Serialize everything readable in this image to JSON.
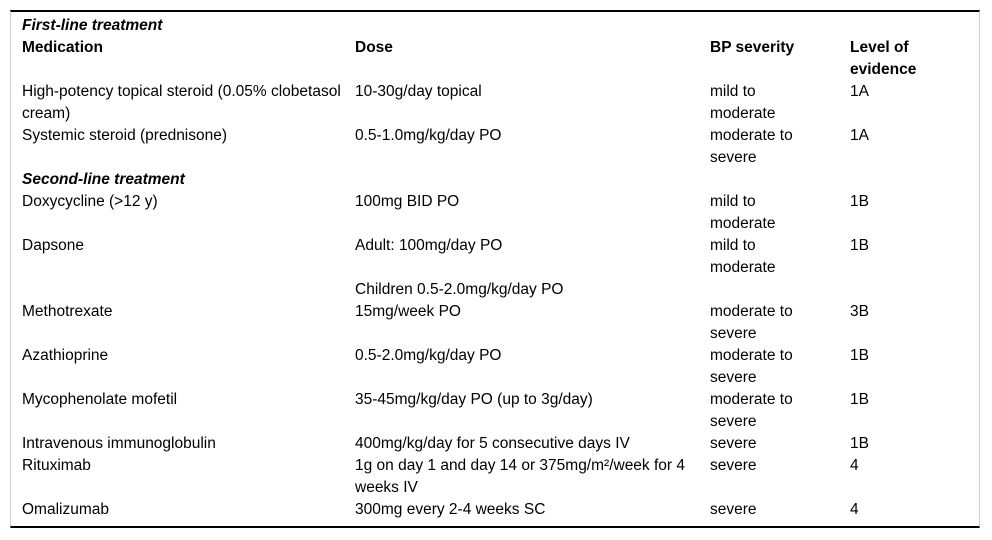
{
  "colors": {
    "text": "#000000",
    "rule": "#000000",
    "frame": "#cccccc",
    "background": "#ffffff"
  },
  "table": {
    "columns": [
      "Medication",
      "Dose",
      "BP severity",
      "Level of evidence"
    ],
    "sections": [
      {
        "title": "First-line treatment",
        "rows": [
          {
            "medication": "High-potency topical steroid (0.05% clobetasol cream)",
            "dose": "10-30g/day topical",
            "severity": "mild to moderate",
            "evidence": "1A"
          },
          {
            "medication": "Systemic steroid (prednisone)",
            "dose": "0.5-1.0mg/kg/day PO",
            "severity": "moderate to severe",
            "evidence": "1A"
          }
        ]
      },
      {
        "title": "Second-line treatment",
        "rows": [
          {
            "medication": "Doxycycline (>12 y)",
            "dose": "100mg BID PO",
            "severity": "mild to moderate",
            "evidence": "1B"
          },
          {
            "medication": "Dapsone",
            "dose": "Adult: 100mg/day PO",
            "severity": "mild to moderate",
            "evidence": "1B"
          },
          {
            "medication": "",
            "dose": "Children 0.5-2.0mg/kg/day PO",
            "severity": "",
            "evidence": ""
          },
          {
            "medication": "Methotrexate",
            "dose": "15mg/week PO",
            "severity": "moderate to severe",
            "evidence": "3B"
          },
          {
            "medication": "Azathioprine",
            "dose": "0.5-2.0mg/kg/day PO",
            "severity": "moderate to severe",
            "evidence": "1B"
          },
          {
            "medication": "Mycophenolate mofetil",
            "dose": "35-45mg/kg/day PO (up to 3g/day)",
            "severity": "moderate to severe",
            "evidence": "1B"
          },
          {
            "medication": "Intravenous immunoglobulin",
            "dose": "400mg/kg/day for 5 consecutive days IV",
            "severity": "severe",
            "evidence": "1B"
          },
          {
            "medication": "Rituximab",
            "dose": "1g on day 1 and day 14 or 375mg/m²/week for 4 weeks IV",
            "severity": "severe",
            "evidence": "4"
          },
          {
            "medication": "Omalizumab",
            "dose": "300mg every 2-4 weeks SC",
            "severity": "severe",
            "evidence": "4"
          }
        ]
      }
    ]
  }
}
